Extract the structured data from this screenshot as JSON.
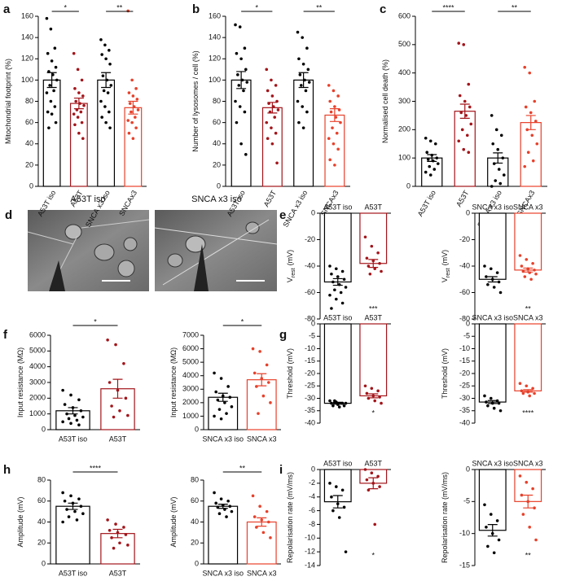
{
  "chart_data": [
    {
      "type": "bar",
      "panel": "a",
      "ylabel": "Mitochondrial footprint (%)",
      "categories": [
        "A53T iso",
        "A53T",
        "SNCA x3 iso",
        "SNCAx3"
      ],
      "colors": [
        "#000000",
        "#a3141a",
        "#000000",
        "#e8402a"
      ],
      "values": [
        100,
        78,
        100,
        74
      ],
      "errors": [
        7,
        5,
        7,
        6
      ],
      "ylim": [
        0,
        160
      ],
      "yticks": [
        0,
        20,
        40,
        60,
        80,
        100,
        120,
        140,
        160
      ],
      "points": [
        [
          158,
          148,
          130,
          125,
          118,
          112,
          108,
          105,
          100,
          95,
          90,
          88,
          80,
          75,
          70,
          68,
          60,
          55
        ],
        [
          125,
          110,
          100,
          92,
          88,
          85,
          80,
          78,
          76,
          72,
          70,
          68,
          65,
          60,
          58,
          50,
          45
        ],
        [
          138,
          133,
          128,
          124,
          120,
          115,
          104,
          100,
          95,
          90,
          88,
          80,
          75,
          70,
          65,
          60,
          55
        ],
        [
          165,
          100,
          92,
          88,
          85,
          82,
          78,
          75,
          72,
          70,
          65,
          62,
          60,
          55,
          50,
          45
        ]
      ],
      "significance": [
        {
          "label": "*",
          "from": 0,
          "to": 1
        },
        {
          "label": "**",
          "from": 2,
          "to": 3
        }
      ]
    },
    {
      "type": "bar",
      "panel": "b",
      "ylabel": "Number of lysosomes / cell (%)",
      "categories": [
        "A53T iso",
        "A53T",
        "SNCA x3 iso",
        "SNCAx3"
      ],
      "colors": [
        "#000000",
        "#a3141a",
        "#000000",
        "#e8402a"
      ],
      "values": [
        100,
        74,
        100,
        67
      ],
      "errors": [
        8,
        5,
        7,
        6
      ],
      "ylim": [
        0,
        160
      ],
      "yticks": [
        0,
        20,
        40,
        60,
        80,
        100,
        120,
        140,
        160
      ],
      "points": [
        [
          152,
          150,
          130,
          125,
          120,
          110,
          105,
          100,
          98,
          95,
          90,
          80,
          75,
          70,
          60,
          40,
          30
        ],
        [
          110,
          100,
          95,
          90,
          85,
          80,
          78,
          75,
          72,
          70,
          65,
          60,
          55,
          50,
          45,
          40,
          22
        ],
        [
          145,
          140,
          130,
          120,
          115,
          110,
          105,
          100,
          98,
          95,
          90,
          80,
          75,
          70,
          60,
          55
        ],
        [
          95,
          90,
          85,
          80,
          75,
          72,
          70,
          65,
          60,
          55,
          50,
          45,
          40,
          35,
          25,
          20
        ]
      ],
      "significance": [
        {
          "label": "*",
          "from": 0,
          "to": 1
        },
        {
          "label": "**",
          "from": 2,
          "to": 3
        }
      ]
    },
    {
      "type": "bar",
      "panel": "c",
      "ylabel": "Normalised cell death (%)",
      "categories": [
        "A53T iso",
        "A53T",
        "SNCA x3 iso",
        "SNCAx3"
      ],
      "colors": [
        "#000000",
        "#a3141a",
        "#000000",
        "#e8402a"
      ],
      "values": [
        100,
        265,
        100,
        225
      ],
      "errors": [
        12,
        25,
        18,
        25
      ],
      "ylim": [
        0,
        600
      ],
      "yticks": [
        0,
        100,
        200,
        300,
        400,
        500,
        600
      ],
      "points": [
        [
          170,
          160,
          150,
          120,
          110,
          100,
          95,
          90,
          80,
          70,
          60,
          50,
          40
        ],
        [
          505,
          500,
          360,
          320,
          300,
          280,
          260,
          250,
          220,
          200,
          180,
          160,
          130,
          120
        ],
        [
          250,
          200,
          180,
          150,
          130,
          100,
          80,
          60,
          40,
          20,
          10,
          0
        ],
        [
          420,
          400,
          300,
          280,
          260,
          230,
          200,
          180,
          150,
          120,
          90,
          70
        ]
      ],
      "significance": [
        {
          "label": "****",
          "from": 0,
          "to": 1
        },
        {
          "label": "**",
          "from": 2,
          "to": 3
        }
      ]
    },
    {
      "type": "bar",
      "panel": "e",
      "ylabel": "V",
      "ylabel_sub": "rest",
      "ylabel_tail": "(mV)",
      "categories": [
        "A53T iso",
        "A53T"
      ],
      "colors": [
        "#000000",
        "#a3141a"
      ],
      "values": [
        -52,
        -38
      ],
      "errors": [
        2.5,
        3
      ],
      "ylim": [
        -80,
        0
      ],
      "yticks": [
        -80,
        -60,
        -40,
        -20,
        0
      ],
      "points": [
        [
          -40,
          -42,
          -44,
          -46,
          -48,
          -50,
          -52,
          -54,
          -56,
          -58,
          -60,
          -62,
          -65,
          -68,
          -72
        ],
        [
          -18,
          -25,
          -30,
          -34,
          -36,
          -38,
          -40,
          -42,
          -44,
          -46
        ]
      ],
      "annotations": [
        {
          "label": "***",
          "bar": 1
        }
      ]
    },
    {
      "type": "bar",
      "ylabel": "V",
      "ylabel_sub": "rest",
      "ylabel_tail": "(mV)",
      "categories": [
        "SNCA x3 iso",
        "SNCA x3"
      ],
      "colors": [
        "#000000",
        "#e8402a"
      ],
      "values": [
        -50,
        -43
      ],
      "errors": [
        2,
        1.5
      ],
      "ylim": [
        -80,
        0
      ],
      "yticks": [
        -80,
        -60,
        -40,
        -20,
        0
      ],
      "points": [
        [
          -40,
          -42,
          -45,
          -48,
          -50,
          -52,
          -54,
          -56,
          -60
        ],
        [
          -32,
          -35,
          -38,
          -40,
          -42,
          -43,
          -44,
          -45,
          -46,
          -48,
          -50
        ]
      ],
      "annotations": [
        {
          "label": "**",
          "bar": 1
        }
      ]
    },
    {
      "type": "bar",
      "panel": "f",
      "ylabel": "Input resistance (MΩ)",
      "categories": [
        "A53T iso",
        "A53T"
      ],
      "colors": [
        "#000000",
        "#a3141a"
      ],
      "values": [
        1200,
        2600
      ],
      "errors": [
        200,
        600
      ],
      "ylim": [
        0,
        6000
      ],
      "yticks": [
        0,
        1000,
        2000,
        3000,
        4000,
        5000,
        6000
      ],
      "points": [
        [
          2500,
          2200,
          1900,
          1600,
          1400,
          1200,
          1000,
          900,
          800,
          700,
          600,
          500,
          400,
          300
        ],
        [
          5700,
          5400,
          4200,
          3000,
          2500,
          2000,
          1500,
          1200,
          900,
          800
        ]
      ],
      "significance": [
        {
          "label": "*",
          "from": 0,
          "to": 1
        }
      ]
    },
    {
      "type": "bar",
      "ylabel": "Input resistance (MΩ)",
      "categories": [
        "SNCA x3 iso",
        "SNCA x3"
      ],
      "colors": [
        "#000000",
        "#e8402a"
      ],
      "values": [
        2400,
        3700
      ],
      "errors": [
        300,
        450
      ],
      "ylim": [
        0,
        7000
      ],
      "yticks": [
        0,
        1000,
        2000,
        3000,
        4000,
        5000,
        6000,
        7000
      ],
      "points": [
        [
          4200,
          3800,
          3200,
          2800,
          2500,
          2400,
          2200,
          2000,
          1700,
          1500,
          1200,
          1000,
          800
        ],
        [
          6000,
          5800,
          4800,
          4200,
          3800,
          3500,
          3200,
          2500,
          2000,
          1200
        ]
      ],
      "significance": [
        {
          "label": "*",
          "from": 0,
          "to": 1
        }
      ]
    },
    {
      "type": "bar",
      "panel": "g",
      "ylabel": "Threshold (mV)",
      "categories": [
        "A53T iso",
        "A53T"
      ],
      "colors": [
        "#000000",
        "#a3141a"
      ],
      "values": [
        -32,
        -29
      ],
      "errors": [
        0.4,
        0.8
      ],
      "ylim": [
        -40,
        0
      ],
      "yticks": [
        -40,
        -35,
        -30,
        -25,
        -20,
        -15,
        -10,
        -5,
        0
      ],
      "points": [
        [
          -31,
          -31.5,
          -32,
          -32,
          -32.5,
          -33,
          -33,
          -33.5,
          -32,
          -31
        ],
        [
          -25,
          -26,
          -27,
          -28,
          -29,
          -29.5,
          -30,
          -31,
          -32
        ]
      ],
      "annotations": [
        {
          "label": "*",
          "bar": 1
        }
      ]
    },
    {
      "type": "bar",
      "ylabel": "Threshold (mV)",
      "categories": [
        "SNCA x3 iso",
        "SNCA x3"
      ],
      "colors": [
        "#000000",
        "#e8402a"
      ],
      "values": [
        -31.5,
        -27
      ],
      "errors": [
        0.6,
        0.5
      ],
      "ylim": [
        -40,
        0
      ],
      "yticks": [
        -40,
        -35,
        -30,
        -25,
        -20,
        -15,
        -10,
        -5,
        0
      ],
      "points": [
        [
          -29,
          -30,
          -31,
          -31.5,
          -32,
          -32,
          -33,
          -34,
          -35
        ],
        [
          -24,
          -25,
          -26,
          -27,
          -27.5,
          -28,
          -28,
          -29
        ]
      ],
      "annotations": [
        {
          "label": "****",
          "bar": 1
        }
      ]
    },
    {
      "type": "bar",
      "panel": "h",
      "ylabel": "Amplitude (mV)",
      "categories": [
        "A53T iso",
        "A53T"
      ],
      "colors": [
        "#000000",
        "#a3141a"
      ],
      "values": [
        55,
        29
      ],
      "errors": [
        3,
        4
      ],
      "ylim": [
        0,
        80
      ],
      "yticks": [
        0,
        20,
        40,
        60,
        80
      ],
      "points": [
        [
          68,
          65,
          62,
          60,
          58,
          55,
          52,
          50,
          48,
          45,
          42,
          40
        ],
        [
          42,
          38,
          35,
          32,
          30,
          28,
          25,
          20,
          18,
          15
        ]
      ],
      "significance": [
        {
          "label": "****",
          "from": 0,
          "to": 1
        }
      ]
    },
    {
      "type": "bar",
      "ylabel": "Amplitude (mV)",
      "categories": [
        "SNCA x3 iso",
        "SNCA x3"
      ],
      "colors": [
        "#000000",
        "#e8402a"
      ],
      "values": [
        55,
        40
      ],
      "errors": [
        2,
        4
      ],
      "ylim": [
        0,
        80
      ],
      "yticks": [
        0,
        20,
        40,
        60,
        80
      ],
      "points": [
        [
          68,
          62,
          60,
          58,
          56,
          55,
          54,
          52,
          50,
          48,
          45
        ],
        [
          65,
          55,
          50,
          45,
          42,
          40,
          35,
          30,
          25
        ]
      ],
      "significance": [
        {
          "label": "**",
          "from": 0,
          "to": 1
        }
      ]
    },
    {
      "type": "bar",
      "panel": "i",
      "ylabel": "Repolarisation rate (mV/ms)",
      "categories": [
        "A53T iso",
        "A53T"
      ],
      "colors": [
        "#000000",
        "#a3141a"
      ],
      "values": [
        -4.7,
        -2
      ],
      "errors": [
        0.9,
        0.8
      ],
      "ylim": [
        -14,
        0
      ],
      "yticks": [
        -14,
        -12,
        -10,
        -8,
        -6,
        -4,
        -2,
        0
      ],
      "points": [
        [
          -2,
          -2.5,
          -3,
          -4,
          -5,
          -5.5,
          -6,
          -7,
          -12
        ],
        [
          0,
          -0.5,
          -1,
          -1.5,
          -2,
          -2.5,
          -3,
          -8
        ]
      ],
      "annotations": [
        {
          "label": "*",
          "bar": 1
        }
      ]
    },
    {
      "type": "bar",
      "ylabel": "Repolarisation rate (mV/ms)",
      "categories": [
        "SNCA x3 iso",
        "SNCA x3"
      ],
      "colors": [
        "#000000",
        "#e8402a"
      ],
      "values": [
        -9.5,
        -5
      ],
      "errors": [
        0.9,
        1
      ],
      "ylim": [
        -15,
        0
      ],
      "yticks": [
        -15,
        -10,
        -5,
        0
      ],
      "points": [
        [
          -5.5,
          -7,
          -8,
          -9,
          -10,
          -11,
          -12,
          -13
        ],
        [
          -1,
          -2,
          -3,
          -4,
          -5,
          -6,
          -7,
          -9,
          -11
        ]
      ],
      "annotations": [
        {
          "label": "**",
          "bar": 1
        }
      ]
    }
  ],
  "image_panel": {
    "panel": "d",
    "captions": [
      "A53T iso",
      "SNCA x3 iso"
    ]
  }
}
